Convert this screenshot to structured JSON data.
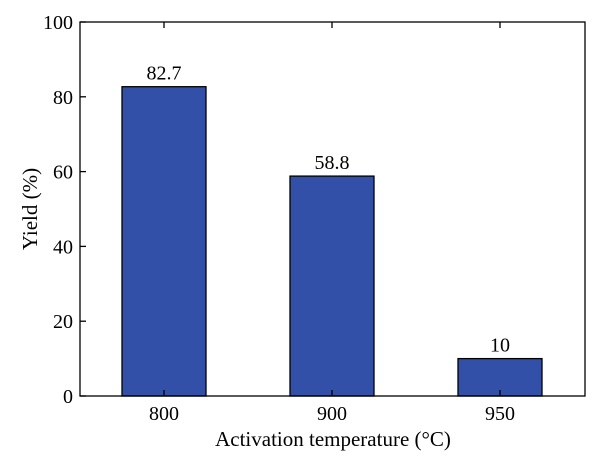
{
  "chart_data": {
    "type": "bar",
    "categories": [
      "800",
      "900",
      "950"
    ],
    "values": [
      82.7,
      58.8,
      10
    ],
    "data_labels": [
      "82.7",
      "58.8",
      "10"
    ],
    "title": "",
    "xlabel": "Activation temperature (°C)",
    "ylabel": "Yield (%)",
    "ylim": [
      0,
      100
    ],
    "yticks": [
      0,
      20,
      40,
      60,
      80,
      100
    ],
    "ytick_labels": [
      "0",
      "20",
      "40",
      "60",
      "80",
      "100"
    ],
    "grid": false,
    "bar_color": "#3350a8",
    "bar_edge_color": "#000000"
  }
}
